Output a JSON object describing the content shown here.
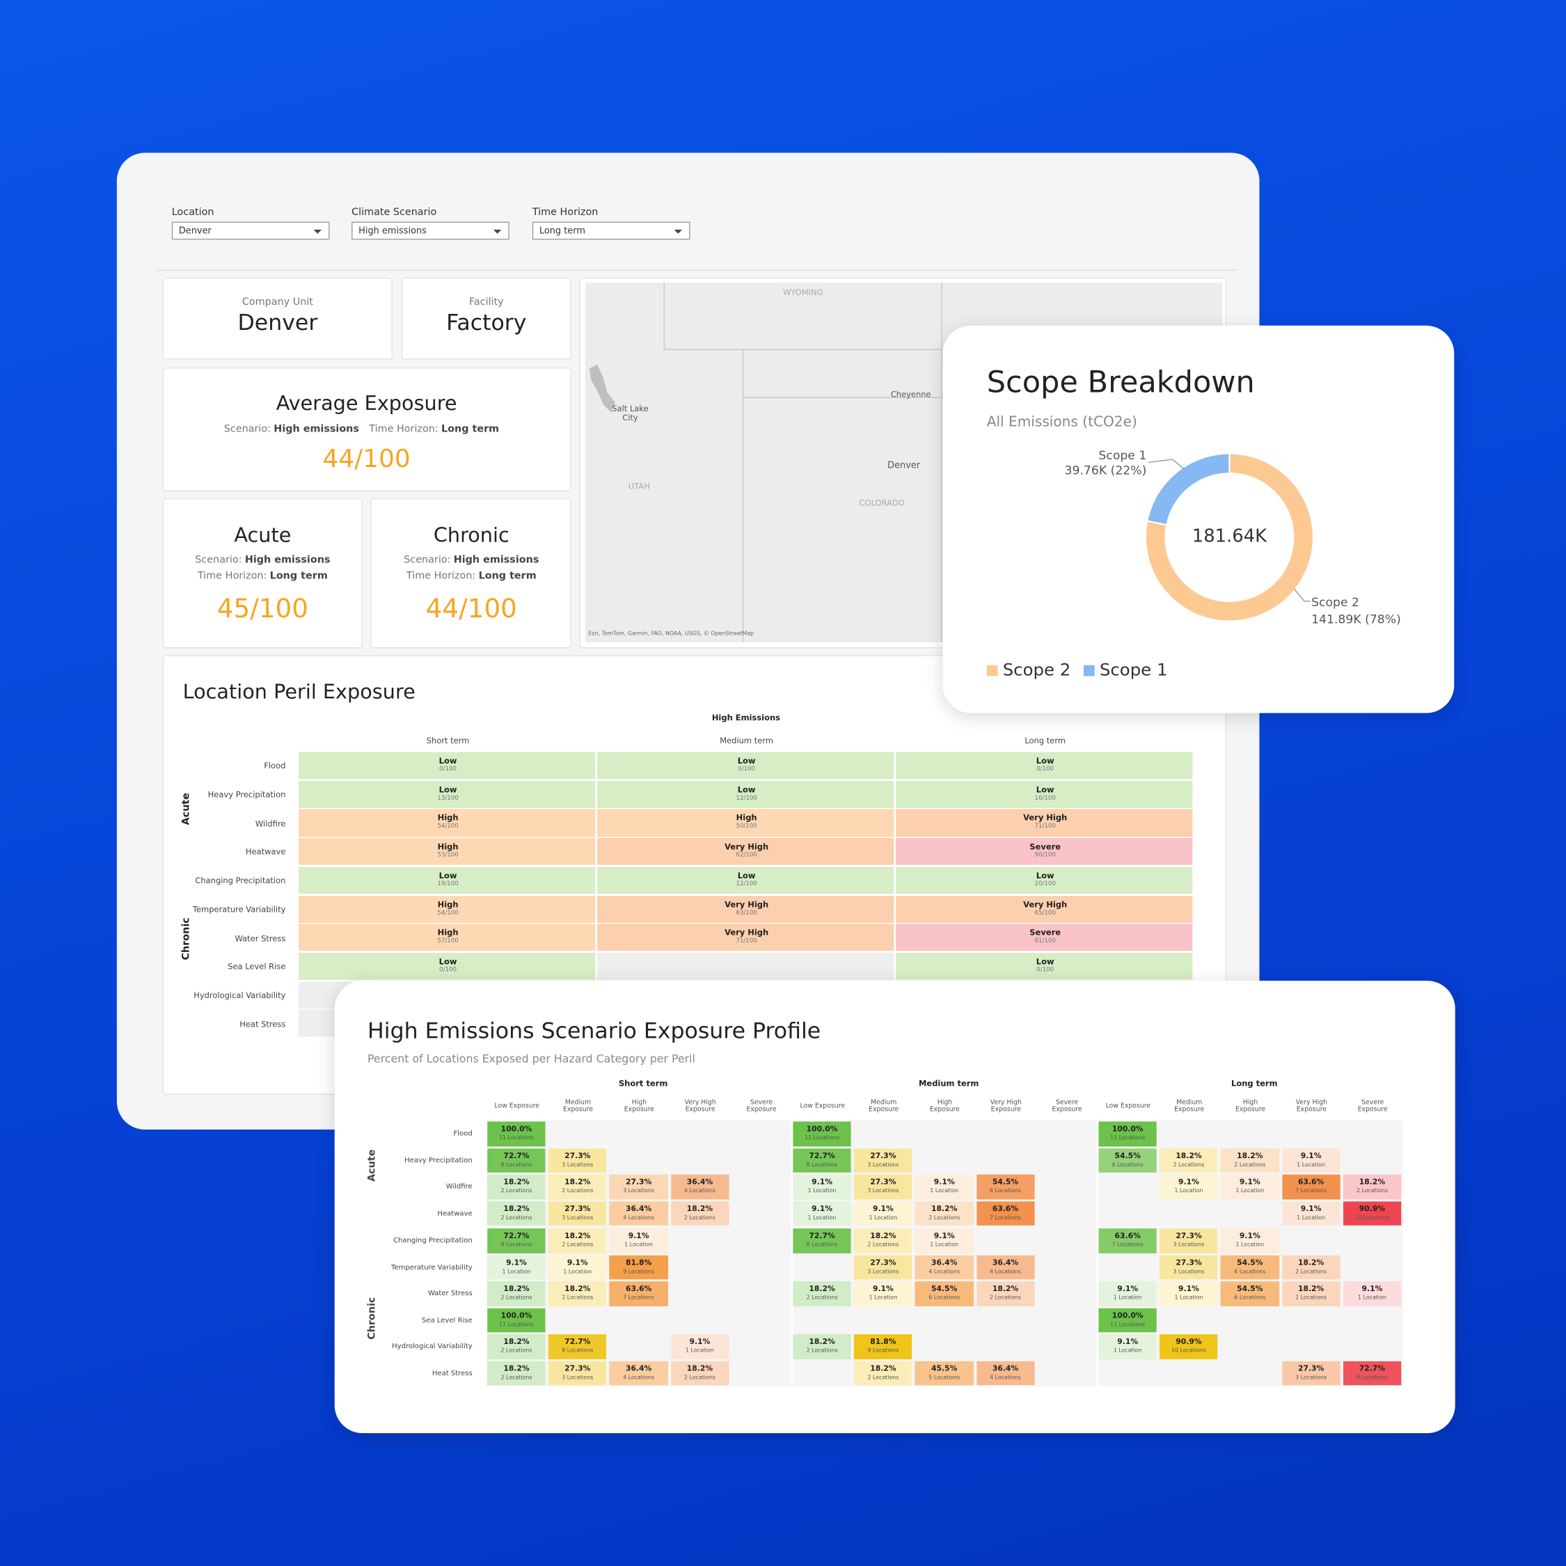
{
  "filters": [
    {
      "label": "Location",
      "value": "Denver"
    },
    {
      "label": "Climate Scenario",
      "value": "High emissions"
    },
    {
      "label": "Time Horizon",
      "value": "Long term"
    }
  ],
  "company_unit": {
    "label": "Company Unit",
    "value": "Denver"
  },
  "facility": {
    "label": "Facility",
    "value": "Factory"
  },
  "average_exposure": {
    "title": "Average Exposure",
    "scenario_label": "Scenario:",
    "scenario": "High emissions",
    "horizon_label": "Time Horizon:",
    "horizon": "Long term",
    "score": "44/100"
  },
  "acute": {
    "title": "Acute",
    "scenario_label": "Scenario:",
    "scenario": "High emissions",
    "horizon_label": "Time Horizon:",
    "horizon": "Long term",
    "score": "45/100"
  },
  "chronic": {
    "title": "Chronic",
    "scenario_label": "Scenario:",
    "scenario": "High emissions",
    "horizon_label": "Time Horizon:",
    "horizon": "Long term",
    "score": "44/100"
  },
  "map": {
    "labels": [
      "WYOMING",
      "Salt Lake City",
      "UTAH",
      "Cheyenne",
      "Denver",
      "COLORADO"
    ],
    "attribution": "Esri, TomTom, Garmin, FAO, NOAA, USGS, © OpenStreetMap"
  },
  "chart_data": {
    "type": "pie",
    "title": "Scope Breakdown",
    "subtitle": "All Emissions (tCO2e)",
    "center_label": "181.64K",
    "categories": [
      "Scope 2",
      "Scope 1"
    ],
    "values": [
      141890,
      39760
    ],
    "value_labels": [
      "141.89K (78%)",
      "39.76K (22%)"
    ],
    "colors": [
      "#fdc993",
      "#86b8f3"
    ],
    "donut": true,
    "legend": "bottom-left"
  },
  "peril": {
    "title": "Location Peril Exposure",
    "scenario": "High Emissions",
    "terms": [
      "Short term",
      "Medium term",
      "Long term"
    ],
    "level_colors": {
      "Low": "#d6edc6",
      "High": "#fdd8b2",
      "Very High": "#fccfae",
      "Severe": "#f9c3c7"
    },
    "groups": [
      {
        "label": "Acute",
        "rows": [
          {
            "name": "Flood",
            "cells": [
              {
                "level": "Low",
                "score": "0/100"
              },
              {
                "level": "Low",
                "score": "0/100"
              },
              {
                "level": "Low",
                "score": "0/100"
              }
            ]
          },
          {
            "name": "Heavy Precipitation",
            "cells": [
              {
                "level": "Low",
                "score": "13/100"
              },
              {
                "level": "Low",
                "score": "12/100"
              },
              {
                "level": "Low",
                "score": "16/100"
              }
            ]
          },
          {
            "name": "Wildfire",
            "cells": [
              {
                "level": "High",
                "score": "54/100"
              },
              {
                "level": "High",
                "score": "50/100"
              },
              {
                "level": "Very High",
                "score": "71/100"
              }
            ]
          },
          {
            "name": "Heatwave",
            "cells": [
              {
                "level": "High",
                "score": "53/100"
              },
              {
                "level": "Very High",
                "score": "62/100"
              },
              {
                "level": "Severe",
                "score": "90/100"
              }
            ]
          }
        ]
      },
      {
        "label": "Chronic",
        "rows": [
          {
            "name": "Changing Precipitation",
            "cells": [
              {
                "level": "Low",
                "score": "19/100"
              },
              {
                "level": "Low",
                "score": "12/100"
              },
              {
                "level": "Low",
                "score": "20/100"
              }
            ]
          },
          {
            "name": "Temperature Variability",
            "cells": [
              {
                "level": "High",
                "score": "54/100"
              },
              {
                "level": "Very High",
                "score": "63/100"
              },
              {
                "level": "Very High",
                "score": "65/100"
              }
            ]
          },
          {
            "name": "Water Stress",
            "cells": [
              {
                "level": "High",
                "score": "57/100"
              },
              {
                "level": "Very High",
                "score": "71/100"
              },
              {
                "level": "Severe",
                "score": "81/100"
              }
            ]
          },
          {
            "name": "Sea Level Rise",
            "cells": [
              {
                "level": "Low",
                "score": "0/100"
              },
              null,
              {
                "level": "Low",
                "score": "0/100"
              }
            ]
          },
          {
            "name": "Hydrological Variability",
            "cells": [
              null,
              null,
              null
            ]
          },
          {
            "name": "Heat Stress",
            "cells": [
              null,
              null,
              null
            ]
          }
        ]
      }
    ]
  },
  "profile": {
    "title": "High Emissions Scenario Exposure Profile",
    "subtitle": "Percent of Locations Exposed per Hazard Category per Peril",
    "terms": [
      "Short term",
      "Medium term",
      "Long term"
    ],
    "levels": [
      "Low Exposure",
      "Medium Exposure",
      "High Exposure",
      "Very High Exposure",
      "Severe Exposure"
    ],
    "level_colors": [
      "#6cc24a",
      "#f0c419",
      "#f5a04a",
      "#f07b2a",
      "#ee4650"
    ],
    "groups": [
      {
        "label": "Acute",
        "rows": [
          {
            "name": "Flood",
            "cells": [
              [
                {
                  "pct": "100.0%",
                  "count": "11 Locations"
                },
                null,
                null,
                null,
                null
              ],
              [
                {
                  "pct": "100.0%",
                  "count": "11 Locations"
                },
                null,
                null,
                null,
                null
              ],
              [
                {
                  "pct": "100.0%",
                  "count": "11 Locations"
                },
                null,
                null,
                null,
                null
              ]
            ]
          },
          {
            "name": "Heavy Precipitation",
            "cells": [
              [
                {
                  "pct": "72.7%",
                  "count": "8 Locations"
                },
                {
                  "pct": "27.3%",
                  "count": "3 Locations"
                },
                null,
                null,
                null
              ],
              [
                {
                  "pct": "72.7%",
                  "count": "8 Locations"
                },
                {
                  "pct": "27.3%",
                  "count": "3 Locations"
                },
                null,
                null,
                null
              ],
              [
                {
                  "pct": "54.5%",
                  "count": "6 Locations"
                },
                {
                  "pct": "18.2%",
                  "count": "2 Locations"
                },
                {
                  "pct": "18.2%",
                  "count": "2 Locations"
                },
                {
                  "pct": "9.1%",
                  "count": "1 Location"
                },
                null
              ]
            ]
          },
          {
            "name": "Wildfire",
            "cells": [
              [
                {
                  "pct": "18.2%",
                  "count": "2 Locations"
                },
                {
                  "pct": "18.2%",
                  "count": "2 Locations"
                },
                {
                  "pct": "27.3%",
                  "count": "3 Locations"
                },
                {
                  "pct": "36.4%",
                  "count": "4 Locations"
                },
                null
              ],
              [
                {
                  "pct": "9.1%",
                  "count": "1 Location"
                },
                {
                  "pct": "27.3%",
                  "count": "3 Locations"
                },
                {
                  "pct": "9.1%",
                  "count": "1 Location"
                },
                {
                  "pct": "54.5%",
                  "count": "6 Locations"
                },
                null
              ],
              [
                null,
                {
                  "pct": "9.1%",
                  "count": "1 Location"
                },
                {
                  "pct": "9.1%",
                  "count": "1 Location"
                },
                {
                  "pct": "63.6%",
                  "count": "7 Locations"
                },
                {
                  "pct": "18.2%",
                  "count": "2 Locations"
                }
              ]
            ]
          },
          {
            "name": "Heatwave",
            "cells": [
              [
                {
                  "pct": "18.2%",
                  "count": "2 Locations"
                },
                {
                  "pct": "27.3%",
                  "count": "3 Locations"
                },
                {
                  "pct": "36.4%",
                  "count": "4 Locations"
                },
                {
                  "pct": "18.2%",
                  "count": "2 Locations"
                },
                null
              ],
              [
                {
                  "pct": "9.1%",
                  "count": "1 Location"
                },
                {
                  "pct": "9.1%",
                  "count": "1 Location"
                },
                {
                  "pct": "18.2%",
                  "count": "2 Locations"
                },
                {
                  "pct": "63.6%",
                  "count": "7 Locations"
                },
                null
              ],
              [
                null,
                null,
                null,
                {
                  "pct": "9.1%",
                  "count": "1 Location"
                },
                {
                  "pct": "90.9%",
                  "count": "10 Locations"
                }
              ]
            ]
          }
        ]
      },
      {
        "label": "Chronic",
        "rows": [
          {
            "name": "Changing Precipitation",
            "cells": [
              [
                {
                  "pct": "72.7%",
                  "count": "8 Locations"
                },
                {
                  "pct": "18.2%",
                  "count": "2 Locations"
                },
                {
                  "pct": "9.1%",
                  "count": "1 Location"
                },
                null,
                null
              ],
              [
                {
                  "pct": "72.7%",
                  "count": "8 Locations"
                },
                {
                  "pct": "18.2%",
                  "count": "2 Locations"
                },
                {
                  "pct": "9.1%",
                  "count": "1 Location"
                },
                null,
                null
              ],
              [
                {
                  "pct": "63.6%",
                  "count": "7 Locations"
                },
                {
                  "pct": "27.3%",
                  "count": "3 Locations"
                },
                {
                  "pct": "9.1%",
                  "count": "1 Location"
                },
                null,
                null
              ]
            ]
          },
          {
            "name": "Temperature Variability",
            "cells": [
              [
                {
                  "pct": "9.1%",
                  "count": "1 Location"
                },
                {
                  "pct": "9.1%",
                  "count": "1 Location"
                },
                {
                  "pct": "81.8%",
                  "count": "9 Locations"
                },
                null,
                null
              ],
              [
                null,
                {
                  "pct": "27.3%",
                  "count": "3 Locations"
                },
                {
                  "pct": "36.4%",
                  "count": "4 Locations"
                },
                {
                  "pct": "36.4%",
                  "count": "4 Locations"
                },
                null
              ],
              [
                null,
                {
                  "pct": "27.3%",
                  "count": "3 Locations"
                },
                {
                  "pct": "54.5%",
                  "count": "6 Locations"
                },
                {
                  "pct": "18.2%",
                  "count": "2 Locations"
                },
                null
              ]
            ]
          },
          {
            "name": "Water Stress",
            "cells": [
              [
                {
                  "pct": "18.2%",
                  "count": "2 Locations"
                },
                {
                  "pct": "18.2%",
                  "count": "2 Locations"
                },
                {
                  "pct": "63.6%",
                  "count": "7 Locations"
                },
                null,
                null
              ],
              [
                {
                  "pct": "18.2%",
                  "count": "2 Locations"
                },
                {
                  "pct": "9.1%",
                  "count": "1 Location"
                },
                {
                  "pct": "54.5%",
                  "count": "6 Locations"
                },
                {
                  "pct": "18.2%",
                  "count": "2 Locations"
                },
                null
              ],
              [
                {
                  "pct": "9.1%",
                  "count": "1 Location"
                },
                {
                  "pct": "9.1%",
                  "count": "1 Location"
                },
                {
                  "pct": "54.5%",
                  "count": "6 Locations"
                },
                {
                  "pct": "18.2%",
                  "count": "2 Locations"
                },
                {
                  "pct": "9.1%",
                  "count": "1 Location"
                }
              ]
            ]
          },
          {
            "name": "Sea Level Rise",
            "cells": [
              [
                {
                  "pct": "100.0%",
                  "count": "11 Locations"
                },
                null,
                null,
                null,
                null
              ],
              [
                null,
                null,
                null,
                null,
                null
              ],
              [
                {
                  "pct": "100.0%",
                  "count": "11 Locations"
                },
                null,
                null,
                null,
                null
              ]
            ]
          },
          {
            "name": "Hydrological Variability",
            "cells": [
              [
                {
                  "pct": "18.2%",
                  "count": "2 Locations"
                },
                {
                  "pct": "72.7%",
                  "count": "8 Locations"
                },
                null,
                {
                  "pct": "9.1%",
                  "count": "1 Location"
                },
                null
              ],
              [
                {
                  "pct": "18.2%",
                  "count": "2 Locations"
                },
                {
                  "pct": "81.8%",
                  "count": "9 Locations"
                },
                null,
                null,
                null
              ],
              [
                {
                  "pct": "9.1%",
                  "count": "1 Location"
                },
                {
                  "pct": "90.9%",
                  "count": "10 Locations"
                },
                null,
                null,
                null
              ]
            ]
          },
          {
            "name": "Heat Stress",
            "cells": [
              [
                {
                  "pct": "18.2%",
                  "count": "2 Locations"
                },
                {
                  "pct": "27.3%",
                  "count": "3 Locations"
                },
                {
                  "pct": "36.4%",
                  "count": "4 Locations"
                },
                {
                  "pct": "18.2%",
                  "count": "2 Locations"
                },
                null
              ],
              [
                null,
                {
                  "pct": "18.2%",
                  "count": "2 Locations"
                },
                {
                  "pct": "45.5%",
                  "count": "5 Locations"
                },
                {
                  "pct": "36.4%",
                  "count": "4 Locations"
                },
                null
              ],
              [
                null,
                null,
                null,
                {
                  "pct": "27.3%",
                  "count": "3 Locations"
                },
                {
                  "pct": "72.7%",
                  "count": "8 Locations"
                }
              ]
            ]
          }
        ]
      }
    ]
  }
}
